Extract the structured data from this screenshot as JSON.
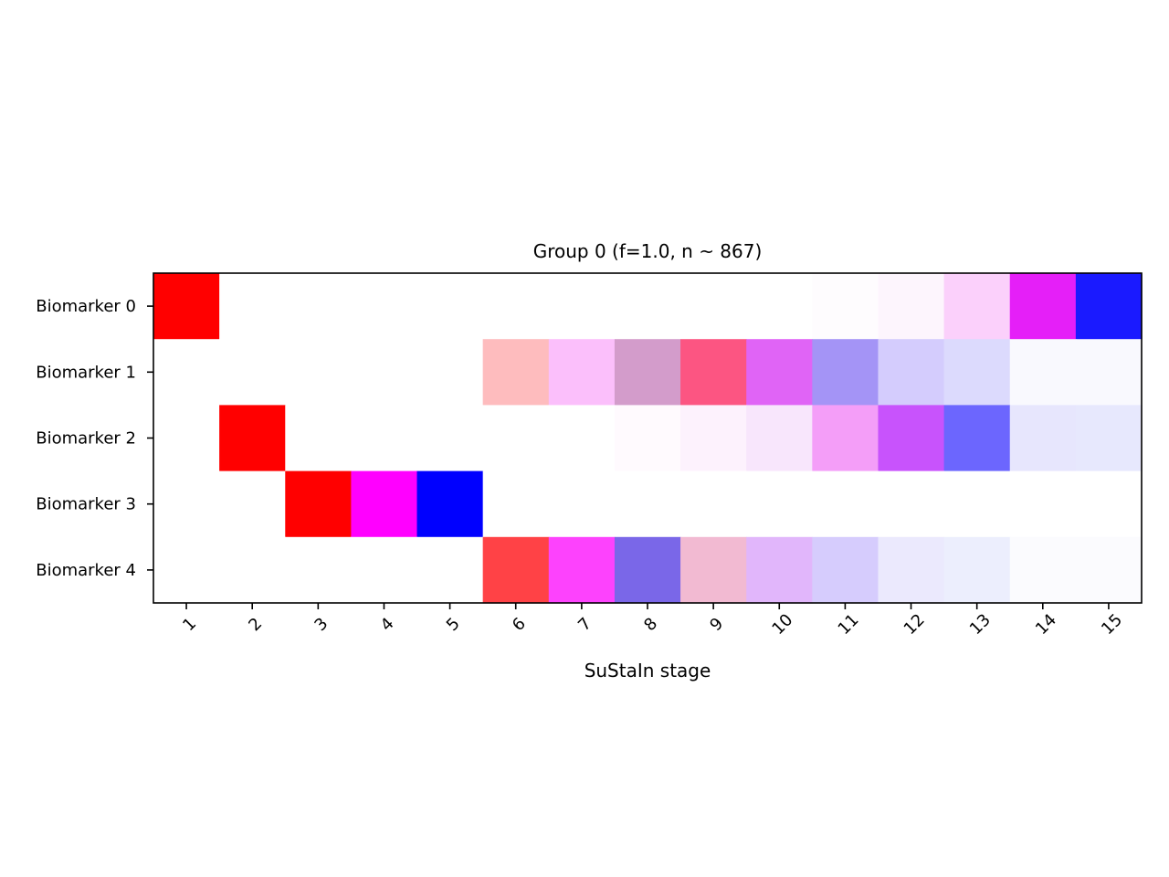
{
  "chart_data": {
    "type": "heatmap",
    "title": "Group 0 (f=1.0, n$\\sim$867)",
    "title_display": "Group 0 (f=1.0, n ~ 867)",
    "xlabel": "SuStaIn stage",
    "ylabel": "",
    "x_tick_labels": [
      "1",
      "2",
      "3",
      "4",
      "5",
      "6",
      "7",
      "8",
      "9",
      "10",
      "11",
      "12",
      "13",
      "14",
      "15"
    ],
    "y_tick_labels": [
      "Biomarker 0",
      "Biomarker 1",
      "Biomarker 2",
      "Biomarker 3",
      "Biomarker 4"
    ],
    "grid": false,
    "cells": [
      [
        "#ff0000",
        "#ffffff",
        "#ffffff",
        "#ffffff",
        "#ffffff",
        "#ffffff",
        "#ffffff",
        "#ffffff",
        "#ffffff",
        "#ffffff",
        "#fefcfe",
        "#fdf5fd",
        "#fbd0fb",
        "#e51ff8",
        "#1a1aff"
      ],
      [
        "#ffffff",
        "#ffffff",
        "#ffffff",
        "#ffffff",
        "#ffffff",
        "#febcbe",
        "#fbbffb",
        "#d39ccb",
        "#fc5582",
        "#e064f6",
        "#a494f6",
        "#d4ccfd",
        "#dcdafd",
        "#f9f9fe",
        "#f9f9fe"
      ],
      [
        "#ffffff",
        "#ff0000",
        "#ffffff",
        "#ffffff",
        "#ffffff",
        "#ffffff",
        "#ffffff",
        "#fffafe",
        "#fdf2fd",
        "#f8e6fc",
        "#f49ef8",
        "#c853fc",
        "#6c66fe",
        "#e7e6fd",
        "#e7e8fd"
      ],
      [
        "#ffffff",
        "#ffffff",
        "#ff0000",
        "#ff00ff",
        "#0000ff",
        "#ffffff",
        "#ffffff",
        "#ffffff",
        "#ffffff",
        "#ffffff",
        "#ffffff",
        "#ffffff",
        "#ffffff",
        "#ffffff",
        "#ffffff"
      ],
      [
        "#ffffff",
        "#ffffff",
        "#ffffff",
        "#ffffff",
        "#ffffff",
        "#ff4246",
        "#fd42fd",
        "#7a67e8",
        "#f2bad2",
        "#e1b6fb",
        "#d6ccfd",
        "#ebe9fd",
        "#eceefd",
        "#fbfbfe",
        "#fbfbfe"
      ]
    ]
  }
}
